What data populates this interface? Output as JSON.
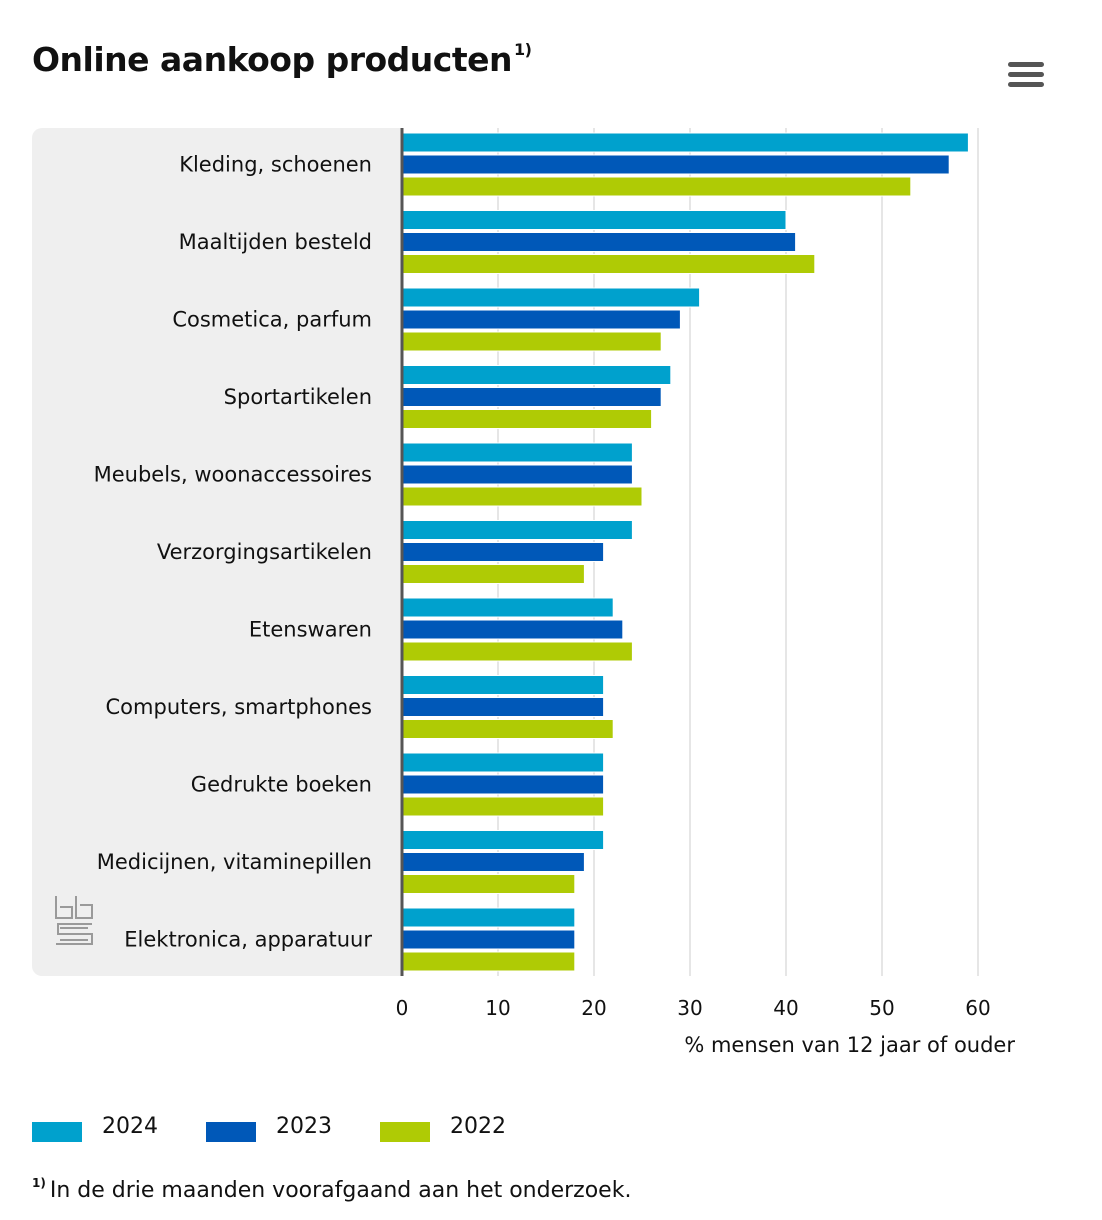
{
  "header": {
    "title": "Online aankoop producten",
    "title_sup": "1)"
  },
  "menu": {
    "icon": "hamburger-menu-icon"
  },
  "logo": {
    "name": "cbs-logo",
    "text": "cbs"
  },
  "colors": {
    "panel": "#efefef",
    "grid": "#cccccc",
    "axis": "#555555",
    "y2024": "#00a1cd",
    "y2023": "#0058b8",
    "y2022": "#afcb05"
  },
  "chart_data": {
    "type": "bar",
    "orientation": "horizontal",
    "categories": [
      "Kleding, schoenen",
      "Maaltijden besteld",
      "Cosmetica, parfum",
      "Sportartikelen",
      "Meubels, woonaccessoires",
      "Verzorgingsartikelen",
      "Etenswaren",
      "Computers, smartphones",
      "Gedrukte boeken",
      "Medicijnen, vitaminepillen",
      "Elektronica, apparatuur"
    ],
    "series": [
      {
        "name": "2024",
        "color": "#00a1cd",
        "values": [
          59,
          40,
          31,
          28,
          24,
          24,
          22,
          21,
          21,
          21,
          18
        ]
      },
      {
        "name": "2023",
        "color": "#0058b8",
        "values": [
          57,
          41,
          29,
          27,
          24,
          21,
          23,
          21,
          21,
          19,
          18
        ]
      },
      {
        "name": "2022",
        "color": "#afcb05",
        "values": [
          53,
          43,
          27,
          26,
          25,
          19,
          24,
          22,
          21,
          18,
          18
        ]
      }
    ],
    "xlabel": "% mensen van 12 jaar of ouder",
    "xlim": [
      0,
      60
    ],
    "xticks": [
      0,
      10,
      20,
      30,
      40,
      50,
      60
    ],
    "grid": true,
    "legend_position": "bottom-left"
  },
  "footnote": {
    "marker": "1)",
    "text": "In de drie maanden voorafgaand aan het onderzoek."
  }
}
